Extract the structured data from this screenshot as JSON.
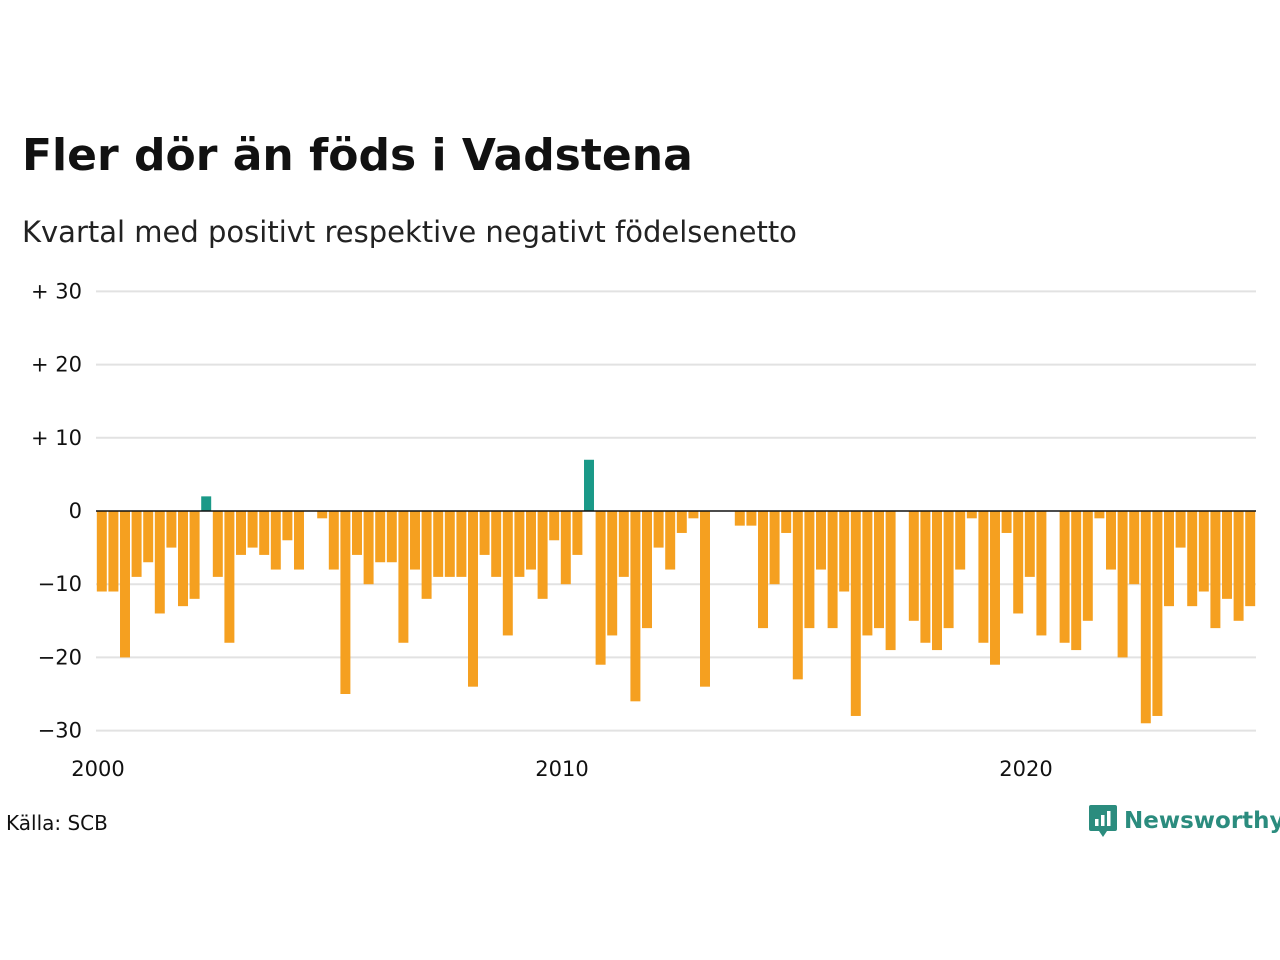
{
  "header": {
    "title": "Fler dör än föds i Vadstena",
    "subtitle": "Kvartal med positivt respektive negativt födelsenetto"
  },
  "footer": {
    "source": "Källa: SCB",
    "brand": "Newsworthy",
    "brand_icon": "bar-chart-speech-bubble-icon"
  },
  "colors": {
    "positive": "#1a9988",
    "negative": "#f5a020",
    "gridline": "#e2e2e2",
    "zero_line": "#111111",
    "brand": "#2b8c7e"
  },
  "chart_data": {
    "type": "bar",
    "title": "Fler dör än föds i Vadstena",
    "subtitle": "Kvartal med positivt respektive negativt födelsenetto",
    "xlabel": "",
    "ylabel": "",
    "ylim": [
      -32,
      32
    ],
    "y_ticks": [
      30,
      20,
      10,
      0,
      -10,
      -20,
      -30
    ],
    "y_tick_labels": [
      "+ 30",
      "+ 20",
      "+ 10",
      "0",
      "−10",
      "−20",
      "−30"
    ],
    "x_ticks": [
      2000,
      2010,
      2020
    ],
    "x_tick_labels": [
      "2000",
      "2010",
      "2020"
    ],
    "grid": true,
    "start_year": 2000,
    "periods_per_year": 4,
    "values": [
      -11,
      -11,
      -20,
      -9,
      -7,
      -14,
      -5,
      -13,
      -12,
      2,
      -9,
      -18,
      -6,
      -5,
      -6,
      -8,
      -4,
      -8,
      0,
      -1,
      -8,
      -25,
      -6,
      -10,
      -7,
      -7,
      -18,
      -8,
      -12,
      -9,
      -9,
      -9,
      -24,
      -6,
      -9,
      -17,
      -9,
      -8,
      -12,
      -4,
      -10,
      -6,
      7,
      -21,
      -17,
      -9,
      -26,
      -16,
      -5,
      -8,
      -3,
      -1,
      -24,
      0,
      0,
      -2,
      -2,
      -16,
      -10,
      -3,
      -23,
      -16,
      -8,
      -16,
      -11,
      -28,
      -17,
      -16,
      -19,
      0,
      -15,
      -18,
      -19,
      -16,
      -8,
      -1,
      -18,
      -21,
      -3,
      -14,
      -9,
      -17,
      0,
      -18,
      -19,
      -15,
      -1,
      -8,
      -20,
      -10,
      -29,
      -28,
      -13,
      -5,
      -13,
      -11,
      -16,
      -12,
      -15,
      -13
    ]
  }
}
